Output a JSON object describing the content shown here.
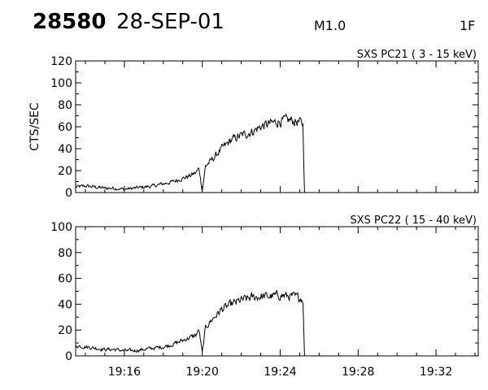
{
  "header": {
    "event_id": "28580",
    "date": "28-SEP-01",
    "flare_class": "M1.0",
    "code": "1F"
  },
  "chart_data": [
    {
      "type": "line",
      "title": "SXS PC21  (  3 - 15 keV)",
      "ylabel": "CTS/SEC",
      "xlabel": "",
      "xlim": [
        "19:13:30",
        "19:34:10"
      ],
      "ylim": [
        0,
        120
      ],
      "yticks": [
        0,
        20,
        40,
        60,
        80,
        100,
        120
      ],
      "xticks": [
        "19:16",
        "19:20",
        "19:24",
        "19:28",
        "19:32"
      ],
      "show_xtick_labels": false,
      "grid": false,
      "series": [
        {
          "x": [
            "19:13:30",
            "19:14:00",
            "19:14:30",
            "19:15:00",
            "19:15:30",
            "19:16:00",
            "19:16:30",
            "19:17:00",
            "19:17:30",
            "19:18:00",
            "19:18:30",
            "19:19:00",
            "19:19:20",
            "19:19:40",
            "19:19:50",
            "19:20:00",
            "19:20:10",
            "19:20:30",
            "19:21:00",
            "19:21:30",
            "19:22:00",
            "19:22:30",
            "19:23:00",
            "19:23:30",
            "19:24:00",
            "19:24:30",
            "19:25:00",
            "19:25:10",
            "19:25:15",
            "19:25:20"
          ],
          "y": [
            5,
            6,
            5,
            4,
            4,
            3,
            4,
            5,
            6,
            8,
            10,
            13,
            15,
            18,
            22,
            2,
            24,
            30,
            40,
            48,
            52,
            55,
            60,
            63,
            65,
            66,
            64,
            62,
            0,
            0
          ],
          "noise": 6
        }
      ]
    },
    {
      "type": "line",
      "title": "SXS PC22  ( 15 - 40 keV)",
      "ylabel": "",
      "xlabel": "",
      "xlim": [
        "19:13:30",
        "19:34:10"
      ],
      "ylim": [
        0,
        100
      ],
      "yticks": [
        0,
        20,
        40,
        60,
        80,
        100
      ],
      "xticks": [
        "19:16",
        "19:20",
        "19:24",
        "19:28",
        "19:32"
      ],
      "show_xtick_labels": true,
      "grid": false,
      "series": [
        {
          "x": [
            "19:13:30",
            "19:14:00",
            "19:14:30",
            "19:15:00",
            "19:15:30",
            "19:16:00",
            "19:16:30",
            "19:17:00",
            "19:17:30",
            "19:18:00",
            "19:18:30",
            "19:19:00",
            "19:19:20",
            "19:19:40",
            "19:19:50",
            "19:20:00",
            "19:20:10",
            "19:20:30",
            "19:21:00",
            "19:21:30",
            "19:22:00",
            "19:22:30",
            "19:23:00",
            "19:23:30",
            "19:24:00",
            "19:24:30",
            "19:25:00",
            "19:25:10",
            "19:25:15",
            "19:25:20"
          ],
          "y": [
            8,
            7,
            6,
            5,
            5,
            4,
            4,
            5,
            6,
            7,
            9,
            12,
            14,
            16,
            20,
            2,
            22,
            28,
            36,
            40,
            43,
            45,
            46,
            46,
            47,
            46,
            45,
            44,
            0,
            0
          ],
          "noise": 5
        }
      ]
    }
  ]
}
